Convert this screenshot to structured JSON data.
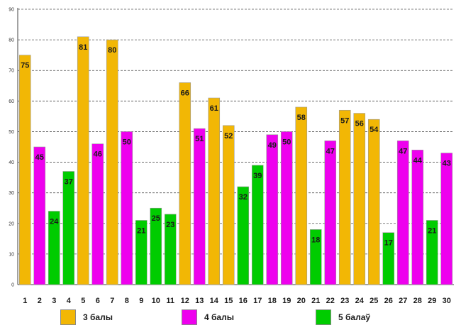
{
  "chart_data": {
    "type": "bar",
    "title": "",
    "xlabel": "",
    "ylabel": "",
    "ylim": [
      0,
      90
    ],
    "yticks": [
      "0",
      "10",
      "20",
      "30",
      "40",
      "50",
      "60",
      "70",
      "80",
      "90"
    ],
    "categories": [
      "1",
      "2",
      "3",
      "4",
      "5",
      "6",
      "7",
      "8",
      "9",
      "10",
      "11",
      "12",
      "13",
      "14",
      "15",
      "16",
      "17",
      "18",
      "19",
      "20",
      "21",
      "22",
      "23",
      "24",
      "25",
      "26",
      "27",
      "28",
      "29",
      "30"
    ],
    "values": [
      75,
      45,
      24,
      37,
      81,
      46,
      80,
      50,
      21,
      25,
      23,
      66,
      51,
      61,
      52,
      32,
      39,
      49,
      50,
      58,
      18,
      47,
      57,
      56,
      54,
      17,
      47,
      44,
      21,
      43
    ],
    "groups": [
      0,
      1,
      2,
      2,
      0,
      1,
      0,
      1,
      2,
      2,
      2,
      0,
      1,
      0,
      0,
      2,
      2,
      1,
      1,
      0,
      2,
      1,
      0,
      0,
      0,
      2,
      1,
      1,
      2,
      1
    ],
    "grid": true,
    "legend_position": "bottom",
    "series": [
      {
        "name": "3 балы",
        "color": "#F2B705"
      },
      {
        "name": "4 балы",
        "color": "#EE00EE"
      },
      {
        "name": "5 балаў",
        "color": "#00CC00"
      }
    ]
  }
}
